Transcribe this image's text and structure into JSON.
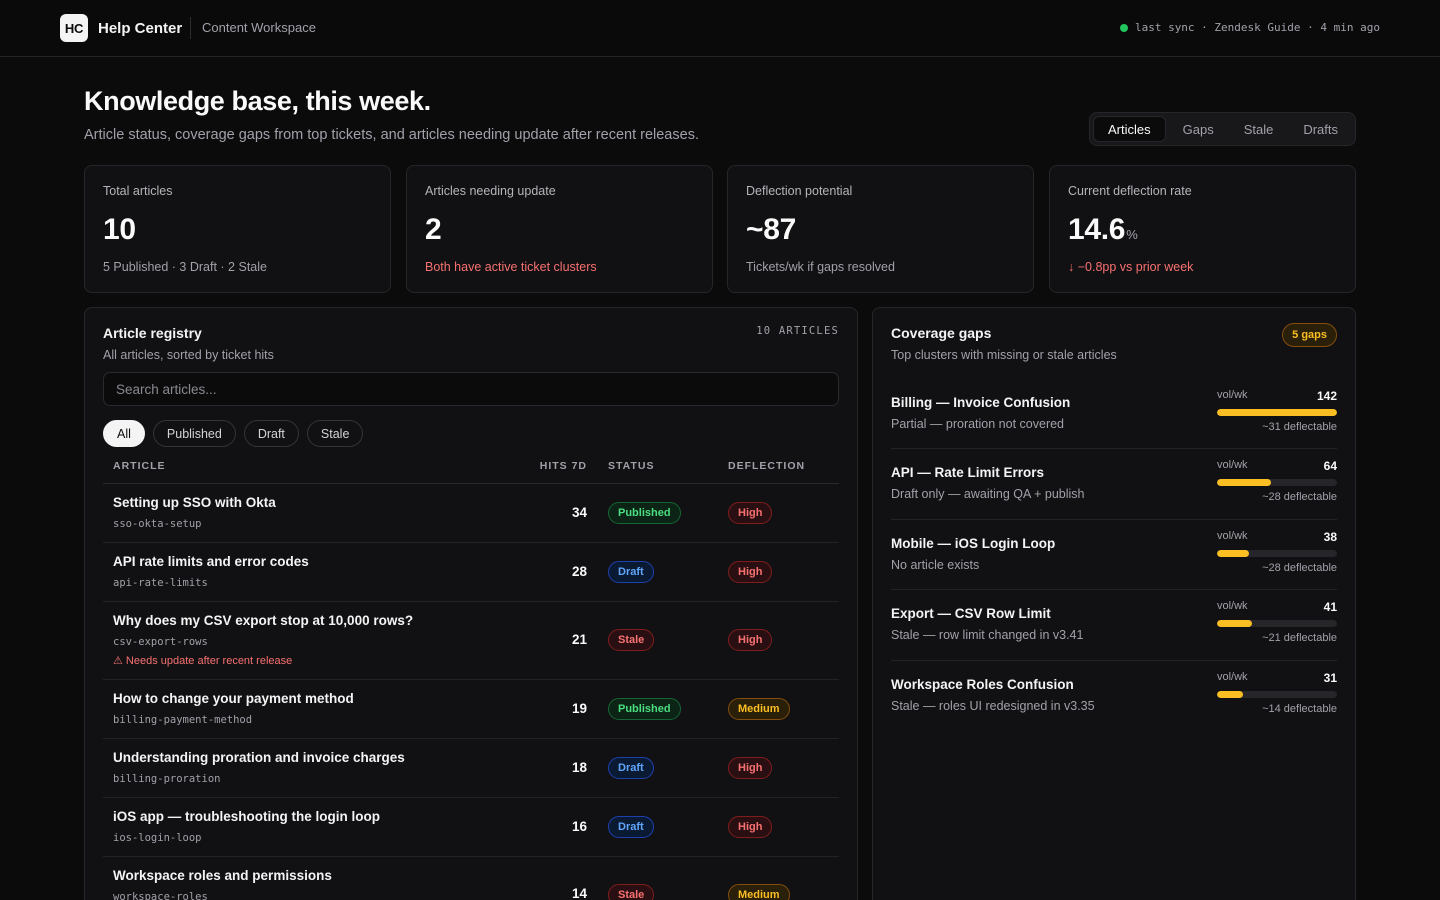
{
  "app": {
    "logo_text": "HC",
    "title": "Help Center",
    "workspace": "Content Workspace",
    "sync_status": "last sync · Zendesk Guide · 4 min ago",
    "sync_color": "#22c55e"
  },
  "header": {
    "title": "Knowledge base, this week.",
    "subtitle": "Article status, coverage gaps from top tickets, and articles needing update after recent releases."
  },
  "tabs": [
    {
      "label": "Articles",
      "active": true
    },
    {
      "label": "Gaps",
      "active": false
    },
    {
      "label": "Stale",
      "active": false
    },
    {
      "label": "Drafts",
      "active": false
    }
  ],
  "kpis": [
    {
      "label": "Total articles",
      "value": "10",
      "unit": "",
      "note": "5 Published · 3 Draft · 2 Stale",
      "note_tone": "neutral"
    },
    {
      "label": "Articles needing update",
      "value": "2",
      "unit": "",
      "note": "Both have active ticket clusters",
      "note_tone": "negative"
    },
    {
      "label": "Deflection potential",
      "value": "~87",
      "unit": "",
      "note": "Tickets/wk if gaps resolved",
      "note_tone": "neutral"
    },
    {
      "label": "Current deflection rate",
      "value": "14.6",
      "unit": "%",
      "note": "↓ −0.8pp vs prior week",
      "note_tone": "negative"
    }
  ],
  "registry": {
    "title": "Article registry",
    "subtitle": "All articles, sorted by ticket hits",
    "count_label": "10 ARTICLES",
    "search_placeholder": "Search articles...",
    "filters": [
      {
        "label": "All",
        "active": true
      },
      {
        "label": "Published",
        "active": false
      },
      {
        "label": "Draft",
        "active": false
      },
      {
        "label": "Stale",
        "active": false
      }
    ],
    "columns": {
      "article": "ARTICLE",
      "hits": "HITS 7D",
      "status": "STATUS",
      "deflection": "DEFLECTION"
    },
    "rows": [
      {
        "title": "Setting up SSO with Okta",
        "slug": "sso-okta-setup",
        "hits": "34",
        "status": "Published",
        "deflection": "High",
        "warning": ""
      },
      {
        "title": "API rate limits and error codes",
        "slug": "api-rate-limits",
        "hits": "28",
        "status": "Draft",
        "deflection": "High",
        "warning": ""
      },
      {
        "title": "Why does my CSV export stop at 10,000 rows?",
        "slug": "csv-export-rows",
        "hits": "21",
        "status": "Stale",
        "deflection": "High",
        "warning": "⚠ Needs update after recent release"
      },
      {
        "title": "How to change your payment method",
        "slug": "billing-payment-method",
        "hits": "19",
        "status": "Published",
        "deflection": "Medium",
        "warning": ""
      },
      {
        "title": "Understanding proration and invoice charges",
        "slug": "billing-proration",
        "hits": "18",
        "status": "Draft",
        "deflection": "High",
        "warning": ""
      },
      {
        "title": "iOS app — troubleshooting the login loop",
        "slug": "ios-login-loop",
        "hits": "16",
        "status": "Draft",
        "deflection": "High",
        "warning": ""
      },
      {
        "title": "Workspace roles and permissions",
        "slug": "workspace-roles",
        "hits": "14",
        "status": "Stale",
        "deflection": "Medium",
        "warning": ""
      }
    ]
  },
  "gaps": {
    "title": "Coverage gaps",
    "subtitle": "Top clusters with missing or stale articles",
    "badge": "5 gaps",
    "vol_label": "vol/wk",
    "items": [
      {
        "title": "Billing — Invoice Confusion",
        "desc": "Partial — proration not covered",
        "vol": "142",
        "fill": 1.0,
        "deflectable": "~31 deflectable"
      },
      {
        "title": "API — Rate Limit Errors",
        "desc": "Draft only — awaiting QA + publish",
        "vol": "64",
        "fill": 0.45,
        "deflectable": "~28 deflectable"
      },
      {
        "title": "Mobile — iOS Login Loop",
        "desc": "No article exists",
        "vol": "38",
        "fill": 0.27,
        "deflectable": "~28 deflectable"
      },
      {
        "title": "Export — CSV Row Limit",
        "desc": "Stale — row limit changed in v3.41",
        "vol": "41",
        "fill": 0.29,
        "deflectable": "~21 deflectable"
      },
      {
        "title": "Workspace Roles Confusion",
        "desc": "Stale — roles UI redesigned in v3.35",
        "vol": "31",
        "fill": 0.22,
        "deflectable": "~14 deflectable"
      }
    ]
  },
  "colors": {
    "background": "#0b0b0c",
    "accent_bar": "#fbbf24",
    "positive": "#4ade80",
    "negative": "#f87171",
    "draft": "#60a5fa"
  }
}
